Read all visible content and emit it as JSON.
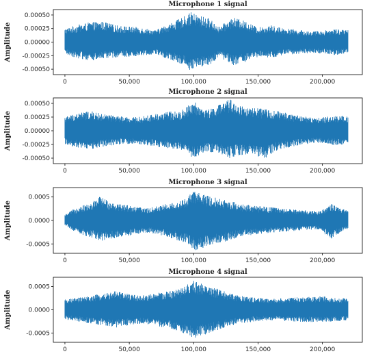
{
  "chart_data": [
    {
      "type": "line",
      "title": "Microphone 1 signal",
      "ylabel": "Amplitude",
      "xlabel": "",
      "xlim": [
        -9000,
        231000
      ],
      "ylim": [
        -0.0006,
        0.0006
      ],
      "xticks": [
        0,
        50000,
        100000,
        150000,
        200000
      ],
      "xtick_labels": [
        "0",
        "50,000",
        "100,000",
        "150,000",
        "200,000"
      ],
      "yticks": [
        0.0005,
        0.00025,
        0.0,
        -0.00025,
        -0.0005
      ],
      "ytick_labels": [
        "0.00050",
        "0.00025",
        "0.00000",
        "-0.00025",
        "-0.00050"
      ],
      "x_range": [
        0,
        220000
      ],
      "color": "#1f77b4",
      "grid": false,
      "envelope_upper": [
        [
          0,
          0.00025
        ],
        [
          10000,
          0.00032
        ],
        [
          20000,
          0.00037
        ],
        [
          30000,
          0.00038
        ],
        [
          40000,
          0.00031
        ],
        [
          50000,
          0.00029
        ],
        [
          60000,
          0.00027
        ],
        [
          70000,
          0.00022
        ],
        [
          80000,
          0.00033
        ],
        [
          90000,
          0.00044
        ],
        [
          98000,
          0.00055
        ],
        [
          105000,
          0.00049
        ],
        [
          112000,
          0.00044
        ],
        [
          120000,
          0.00028
        ],
        [
          130000,
          0.00046
        ],
        [
          140000,
          0.00039
        ],
        [
          150000,
          0.00027
        ],
        [
          160000,
          0.00031
        ],
        [
          170000,
          0.00026
        ],
        [
          180000,
          0.00023
        ],
        [
          190000,
          0.0002
        ],
        [
          200000,
          0.00021
        ],
        [
          210000,
          0.00025
        ],
        [
          220000,
          0.00022
        ]
      ],
      "envelope_lower": [
        [
          0,
          -0.00022
        ],
        [
          10000,
          -0.0003
        ],
        [
          20000,
          -0.00035
        ],
        [
          30000,
          -0.00031
        ],
        [
          40000,
          -0.00028
        ],
        [
          50000,
          -0.00027
        ],
        [
          60000,
          -0.00025
        ],
        [
          70000,
          -0.00022
        ],
        [
          80000,
          -0.00032
        ],
        [
          90000,
          -0.0004
        ],
        [
          98000,
          -0.00053
        ],
        [
          105000,
          -0.00046
        ],
        [
          112000,
          -0.00043
        ],
        [
          120000,
          -0.00027
        ],
        [
          130000,
          -0.00043
        ],
        [
          140000,
          -0.00037
        ],
        [
          150000,
          -0.00028
        ],
        [
          160000,
          -0.0003
        ],
        [
          170000,
          -0.00024
        ],
        [
          180000,
          -0.00022
        ],
        [
          190000,
          -0.0002
        ],
        [
          200000,
          -0.00021
        ],
        [
          210000,
          -0.00024
        ],
        [
          220000,
          -0.00021
        ]
      ]
    },
    {
      "type": "line",
      "title": "Microphone 2 signal",
      "ylabel": "Amplitude",
      "xlabel": "",
      "xlim": [
        -9000,
        231000
      ],
      "ylim": [
        -0.0006,
        0.0006
      ],
      "xticks": [
        0,
        50000,
        100000,
        150000,
        200000
      ],
      "xtick_labels": [
        "0",
        "50,000",
        "100,000",
        "150,000",
        "200,000"
      ],
      "yticks": [
        0.0005,
        0.00025,
        0.0,
        -0.00025,
        -0.0005
      ],
      "ytick_labels": [
        "0.00050",
        "0.00025",
        "0.00000",
        "-0.00025",
        "-0.00050"
      ],
      "x_range": [
        0,
        220000
      ],
      "color": "#1f77b4",
      "grid": false,
      "envelope_upper": [
        [
          0,
          0.00026
        ],
        [
          10000,
          0.00033
        ],
        [
          20000,
          0.00036
        ],
        [
          30000,
          0.0003
        ],
        [
          40000,
          0.00028
        ],
        [
          50000,
          0.00024
        ],
        [
          60000,
          0.00026
        ],
        [
          70000,
          0.00031
        ],
        [
          80000,
          0.00035
        ],
        [
          90000,
          0.00036
        ],
        [
          100000,
          0.00054
        ],
        [
          110000,
          0.00038
        ],
        [
          120000,
          0.00048
        ],
        [
          128000,
          0.00058
        ],
        [
          135000,
          0.00047
        ],
        [
          145000,
          0.00042
        ],
        [
          155000,
          0.0004
        ],
        [
          165000,
          0.00036
        ],
        [
          175000,
          0.00031
        ],
        [
          185000,
          0.00027
        ],
        [
          195000,
          0.00023
        ],
        [
          205000,
          0.00026
        ],
        [
          215000,
          0.00028
        ],
        [
          220000,
          0.00026
        ]
      ],
      "envelope_lower": [
        [
          0,
          -0.00025
        ],
        [
          10000,
          -0.00031
        ],
        [
          20000,
          -0.00034
        ],
        [
          30000,
          -0.00029
        ],
        [
          40000,
          -0.00026
        ],
        [
          50000,
          -0.00024
        ],
        [
          60000,
          -0.00025
        ],
        [
          70000,
          -0.00029
        ],
        [
          80000,
          -0.00032
        ],
        [
          90000,
          -0.00036
        ],
        [
          100000,
          -0.0005
        ],
        [
          110000,
          -0.00038
        ],
        [
          120000,
          -0.00042
        ],
        [
          128000,
          -0.0005
        ],
        [
          135000,
          -0.00045
        ],
        [
          145000,
          -0.00042
        ],
        [
          155000,
          -0.00052
        ],
        [
          165000,
          -0.00035
        ],
        [
          175000,
          -0.0003
        ],
        [
          185000,
          -0.00026
        ],
        [
          195000,
          -0.00022
        ],
        [
          205000,
          -0.00025
        ],
        [
          215000,
          -0.00027
        ],
        [
          220000,
          -0.00025
        ]
      ]
    },
    {
      "type": "line",
      "title": "Microphone 3 signal",
      "ylabel": "Amplitude",
      "xlabel": "",
      "xlim": [
        -9000,
        231000
      ],
      "ylim": [
        -0.0007,
        0.0007
      ],
      "xticks": [
        0,
        50000,
        100000,
        150000,
        200000
      ],
      "xtick_labels": [
        "0",
        "50,000",
        "100,000",
        "150,000",
        "200,000"
      ],
      "yticks": [
        0.0005,
        0.0,
        -0.0005
      ],
      "ytick_labels": [
        "0.0005",
        "0.0000",
        "-0.0005"
      ],
      "x_range": [
        0,
        220000
      ],
      "color": "#1f77b4",
      "grid": false,
      "envelope_upper": [
        [
          0,
          0.00012
        ],
        [
          10000,
          0.0003
        ],
        [
          20000,
          0.00036
        ],
        [
          27000,
          0.00052
        ],
        [
          35000,
          0.00041
        ],
        [
          45000,
          0.00035
        ],
        [
          55000,
          0.0003
        ],
        [
          65000,
          0.00026
        ],
        [
          75000,
          0.00034
        ],
        [
          85000,
          0.00038
        ],
        [
          95000,
          0.00048
        ],
        [
          100000,
          0.00065
        ],
        [
          108000,
          0.00055
        ],
        [
          118000,
          0.00048
        ],
        [
          128000,
          0.00042
        ],
        [
          138000,
          0.00035
        ],
        [
          148000,
          0.00031
        ],
        [
          158000,
          0.00029
        ],
        [
          170000,
          0.00025
        ],
        [
          185000,
          0.00022
        ],
        [
          197000,
          0.0002
        ],
        [
          207000,
          0.00035
        ],
        [
          214000,
          0.00026
        ],
        [
          220000,
          0.00022
        ]
      ],
      "envelope_lower": [
        [
          0,
          -0.0001
        ],
        [
          10000,
          -0.00028
        ],
        [
          20000,
          -0.00036
        ],
        [
          27000,
          -0.00045
        ],
        [
          35000,
          -0.0004
        ],
        [
          45000,
          -0.00034
        ],
        [
          55000,
          -0.0003
        ],
        [
          65000,
          -0.00026
        ],
        [
          75000,
          -0.00032
        ],
        [
          85000,
          -0.0004
        ],
        [
          95000,
          -0.0005
        ],
        [
          100000,
          -0.00065
        ],
        [
          108000,
          -0.00058
        ],
        [
          118000,
          -0.0005
        ],
        [
          128000,
          -0.00042
        ],
        [
          138000,
          -0.00034
        ],
        [
          148000,
          -0.0003
        ],
        [
          158000,
          -0.00028
        ],
        [
          170000,
          -0.00024
        ],
        [
          185000,
          -0.00021
        ],
        [
          197000,
          -0.00019
        ],
        [
          207000,
          -0.0004
        ],
        [
          214000,
          -0.00026
        ],
        [
          220000,
          -0.0002
        ]
      ]
    },
    {
      "type": "line",
      "title": "Microphone 4 signal",
      "ylabel": "Amplitude",
      "xlabel": "",
      "xlim": [
        -9000,
        231000
      ],
      "ylim": [
        -0.0007,
        0.0007
      ],
      "xticks": [
        0,
        50000,
        100000,
        150000,
        200000
      ],
      "xtick_labels": [
        "0",
        "50,000",
        "100,000",
        "150,000",
        "200,000"
      ],
      "yticks": [
        0.0005,
        0.0,
        -0.0005
      ],
      "ytick_labels": [
        "0.0005",
        "0.0000",
        "-0.0005"
      ],
      "x_range": [
        0,
        220000
      ],
      "color": "#1f77b4",
      "grid": false,
      "envelope_upper": [
        [
          0,
          0.00022
        ],
        [
          10000,
          0.00026
        ],
        [
          20000,
          0.0003
        ],
        [
          30000,
          0.00036
        ],
        [
          40000,
          0.0004
        ],
        [
          50000,
          0.00034
        ],
        [
          60000,
          0.00031
        ],
        [
          70000,
          0.00036
        ],
        [
          80000,
          0.0004
        ],
        [
          90000,
          0.00046
        ],
        [
          100000,
          0.00063
        ],
        [
          108000,
          0.00055
        ],
        [
          118000,
          0.00046
        ],
        [
          128000,
          0.00036
        ],
        [
          138000,
          0.0003
        ],
        [
          148000,
          0.00026
        ],
        [
          158000,
          0.00024
        ],
        [
          170000,
          0.00025
        ],
        [
          185000,
          0.00028
        ],
        [
          200000,
          0.00029
        ],
        [
          210000,
          0.00026
        ],
        [
          220000,
          0.00024
        ]
      ],
      "envelope_lower": [
        [
          0,
          -0.00021
        ],
        [
          10000,
          -0.00025
        ],
        [
          20000,
          -0.0003
        ],
        [
          30000,
          -0.00034
        ],
        [
          40000,
          -0.00038
        ],
        [
          50000,
          -0.00033
        ],
        [
          60000,
          -0.0003
        ],
        [
          70000,
          -0.00035
        ],
        [
          80000,
          -0.0004
        ],
        [
          90000,
          -0.00047
        ],
        [
          100000,
          -0.00063
        ],
        [
          108000,
          -0.00055
        ],
        [
          118000,
          -0.00045
        ],
        [
          128000,
          -0.00035
        ],
        [
          138000,
          -0.00029
        ],
        [
          148000,
          -0.00025
        ],
        [
          158000,
          -0.00023
        ],
        [
          170000,
          -0.00024
        ],
        [
          185000,
          -0.00026
        ],
        [
          200000,
          -0.00027
        ],
        [
          210000,
          -0.00025
        ],
        [
          220000,
          -0.00023
        ]
      ]
    }
  ]
}
